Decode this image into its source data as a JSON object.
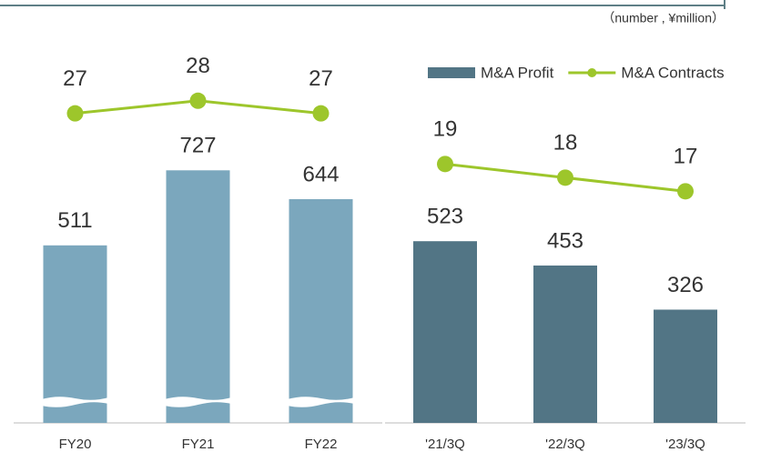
{
  "unit_note": "（number , ¥million）",
  "chart_data": [
    {
      "type": "combo",
      "categories": [
        "FY20",
        "FY21",
        "FY22"
      ],
      "series": [
        {
          "type": "bar",
          "color": "#7ba7bd",
          "values": [
            511,
            727,
            644
          ]
        },
        {
          "type": "line",
          "axis": "y2",
          "color": "#9dc62b",
          "values": [
            27,
            28,
            27
          ]
        }
      ],
      "ylim": [
        0,
        1000
      ],
      "y2lim": [
        2.5,
        30
      ],
      "axis_break": true
    },
    {
      "type": "combo",
      "categories": [
        "'21/3Q",
        "'22/3Q",
        "'23/3Q"
      ],
      "series": [
        {
          "type": "bar",
          "name": "M&A Profit",
          "color": "#527585",
          "values": [
            523,
            453,
            326
          ]
        },
        {
          "type": "line",
          "name": "M&A Contracts",
          "axis": "y2",
          "color": "#9dc62b",
          "values": [
            19,
            18,
            17
          ]
        }
      ],
      "ylim": [
        0,
        1000
      ],
      "y2lim": [
        0,
        25.5
      ],
      "axis_break": false,
      "legend": "top-right"
    }
  ]
}
